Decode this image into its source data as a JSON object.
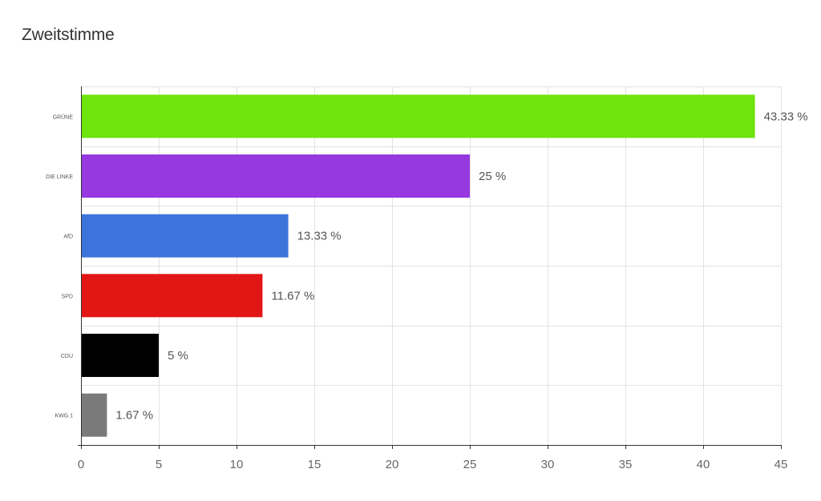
{
  "page": {
    "title": "Zweitstimme"
  },
  "chart_data": {
    "type": "bar",
    "orientation": "horizontal",
    "title": "Zweitstimme",
    "categories": [
      "GRÜNE",
      "DIE LINKE",
      "AfD",
      "SPD",
      "CDU",
      "KWG 1"
    ],
    "values": [
      43.33,
      25,
      13.33,
      11.67,
      5,
      1.67
    ],
    "value_labels": [
      "43.33 %",
      "25 %",
      "13.33 %",
      "11.67 %",
      "5 %",
      "1.67 %"
    ],
    "colors": [
      "#6ee30c",
      "#9639e0",
      "#3d74db",
      "#e31616",
      "#000000",
      "#7a7a7a"
    ],
    "xlim": [
      0,
      45
    ],
    "xticks": [
      0,
      5,
      10,
      15,
      20,
      25,
      30,
      35,
      40,
      45
    ],
    "grid": true,
    "legend": "none"
  }
}
